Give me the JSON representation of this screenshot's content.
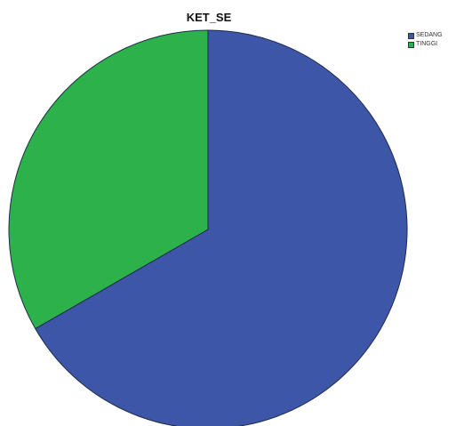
{
  "chart_data": {
    "type": "pie",
    "title": "KET_SE",
    "categories": [
      "SEDANG",
      "TINGGI"
    ],
    "values": [
      66.7,
      33.3
    ],
    "colors": [
      "#3d56a7",
      "#2db14a"
    ],
    "legend_position": "top-right",
    "start_angle_deg": 0,
    "direction": "clockwise"
  }
}
